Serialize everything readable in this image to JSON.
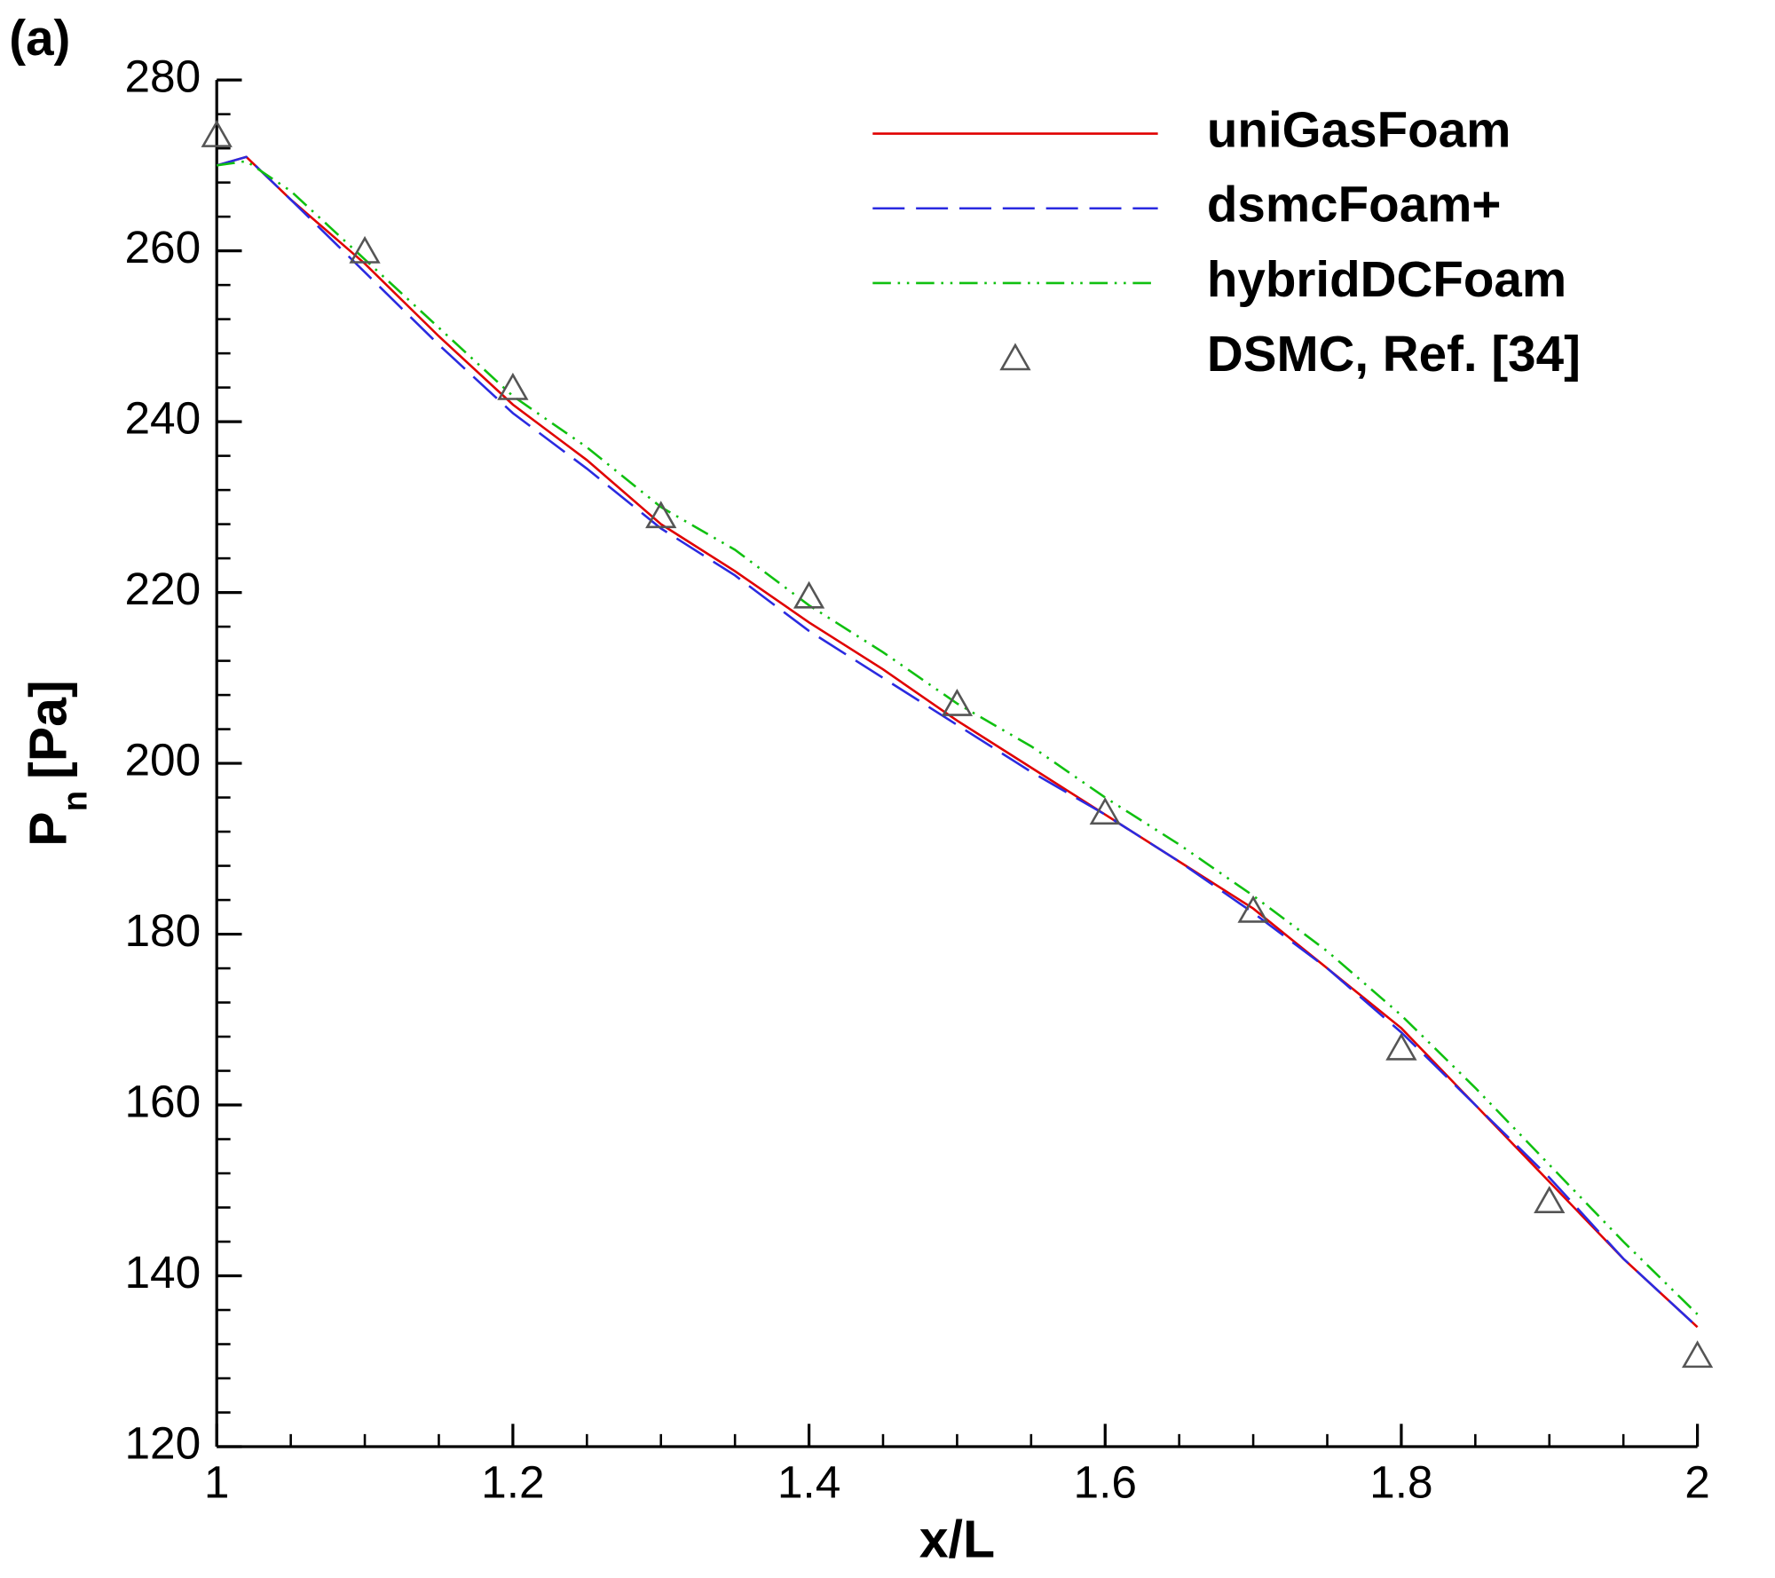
{
  "chart_data": {
    "type": "line",
    "panel_label": "(a)",
    "x_label": "x/L",
    "y_label": "P",
    "y_label_sub": "n",
    "y_label_unit": "[Pa]",
    "xlim": [
      1,
      2
    ],
    "xticks": [
      1,
      1.2,
      1.4,
      1.6,
      1.8,
      2
    ],
    "ylim": [
      120,
      280
    ],
    "yticks": [
      120,
      140,
      160,
      180,
      200,
      220,
      240,
      260,
      280
    ],
    "legend": "upper right",
    "series": [
      {
        "name": "uniGasFoam",
        "color": "#e00000",
        "style": "solid",
        "x": [
          1,
          1.02,
          1.05,
          1.1,
          1.15,
          1.2,
          1.25,
          1.3,
          1.35,
          1.4,
          1.45,
          1.5,
          1.55,
          1.6,
          1.65,
          1.7,
          1.75,
          1.8,
          1.85,
          1.9,
          1.95,
          2
        ],
        "values": [
          270,
          271,
          266,
          258.5,
          250,
          242,
          235.5,
          228,
          222.5,
          216.5,
          211,
          205,
          199.5,
          194,
          188.5,
          183,
          176,
          169,
          160,
          151,
          142,
          134
        ]
      },
      {
        "name": "dsmcFoam+",
        "color": "#2a2ae0",
        "style": "dashed",
        "x": [
          1,
          1.02,
          1.05,
          1.1,
          1.15,
          1.2,
          1.25,
          1.3,
          1.35,
          1.4,
          1.45,
          1.5,
          1.55,
          1.6,
          1.65,
          1.7,
          1.75,
          1.8,
          1.85,
          1.9,
          1.95,
          2
        ],
        "values": [
          270,
          271,
          266,
          257.5,
          249,
          241,
          234.5,
          227.5,
          222,
          215.5,
          210,
          204.5,
          199,
          194,
          188.5,
          182.5,
          176,
          168.5,
          160,
          151.5,
          142,
          134
        ]
      },
      {
        "name": "hybridDCFoam",
        "color": "#10c010",
        "style": "dashdotdot",
        "x": [
          1,
          1.02,
          1.05,
          1.1,
          1.15,
          1.2,
          1.25,
          1.3,
          1.35,
          1.4,
          1.45,
          1.5,
          1.55,
          1.6,
          1.65,
          1.7,
          1.75,
          1.8,
          1.85,
          1.9,
          1.95,
          2
        ],
        "values": [
          270,
          270.5,
          267,
          259,
          251,
          243,
          237,
          230,
          225,
          218.5,
          213,
          207,
          202,
          196,
          190.5,
          184.5,
          178,
          170.5,
          162,
          153,
          144,
          135.5
        ]
      },
      {
        "name": "DSMC, Ref. [34]",
        "color": "#555555",
        "style": "triangle",
        "x": [
          1,
          1.1,
          1.2,
          1.3,
          1.4,
          1.5,
          1.6,
          1.7,
          1.8,
          1.9,
          2
        ],
        "values": [
          273.6,
          260,
          244,
          229,
          219.6,
          207,
          194.3,
          182.8,
          166.7,
          148.8,
          130.7
        ]
      }
    ]
  }
}
